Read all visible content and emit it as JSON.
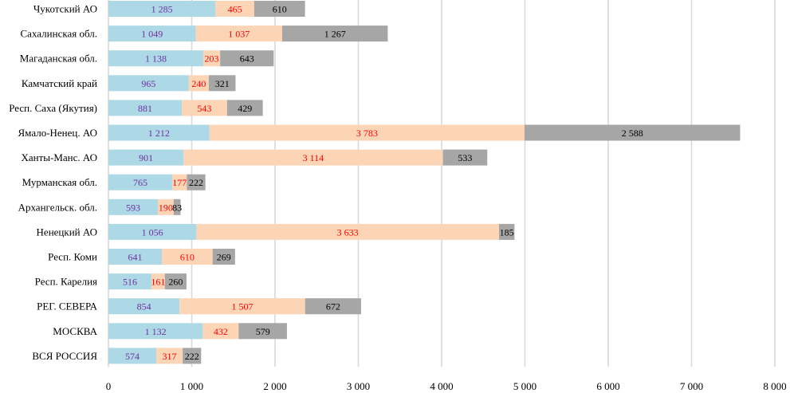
{
  "chart_data": {
    "type": "bar",
    "orientation": "horizontal",
    "stacked": true,
    "title": "",
    "xlabel": "",
    "ylabel": "",
    "categories": [
      "Чукотский АО",
      "Сахалинская обл.",
      "Магаданская обл.",
      "Камчатский край",
      "Респ. Саха (Якутия)",
      "Ямало-Ненец. АО",
      "Ханты-Манс. АО",
      "Мурманская обл.",
      "Архангельск. обл.",
      "Ненецкий АО",
      "Респ. Коми",
      "Респ. Карелия",
      "РЕГ. СЕВЕРА",
      "МОСКВА",
      "ВСЯ РОССИЯ"
    ],
    "series": [
      {
        "color": "#add8e6",
        "label_color": "#7030a0",
        "values": [
          1285,
          1049,
          1138,
          965,
          881,
          1212,
          901,
          765,
          593,
          1056,
          641,
          516,
          854,
          1132,
          574
        ],
        "labels": [
          "1 285",
          "1 049",
          "1 138",
          "965",
          "881",
          "1 212",
          "901",
          "765",
          "593",
          "1 056",
          "641",
          "516",
          "854",
          "1 132",
          "574"
        ]
      },
      {
        "color": "#fbd5b5",
        "label_color": "#ff0000",
        "values": [
          465,
          1037,
          203,
          240,
          543,
          3783,
          3114,
          177,
          190,
          3633,
          610,
          161,
          1507,
          432,
          317
        ],
        "labels": [
          "465",
          "1 037",
          "203",
          "240",
          "543",
          "3 783",
          "3 114",
          "177",
          "190",
          "3 633",
          "610",
          "161",
          "1 507",
          "432",
          "317"
        ]
      },
      {
        "color": "#a6a6a6",
        "label_color": "#000000",
        "values": [
          610,
          1267,
          643,
          321,
          429,
          2588,
          533,
          222,
          83,
          185,
          269,
          260,
          672,
          579,
          222
        ],
        "labels": [
          "610",
          "1 267",
          "643",
          "321",
          "429",
          "2 588",
          "533",
          "222",
          "83",
          "185",
          "269",
          "260",
          "672",
          "579",
          "222"
        ]
      }
    ],
    "xlim": [
      0,
      8000
    ],
    "xticks": [
      0,
      1000,
      2000,
      3000,
      4000,
      5000,
      6000,
      7000,
      8000
    ],
    "xtick_labels": [
      "0",
      "1 000",
      "2 000",
      "3 000",
      "4 000",
      "5 000",
      "6 000",
      "7 000",
      "8 000"
    ],
    "grid": true,
    "grid_color": "#d9d9d9",
    "legend": "none"
  }
}
